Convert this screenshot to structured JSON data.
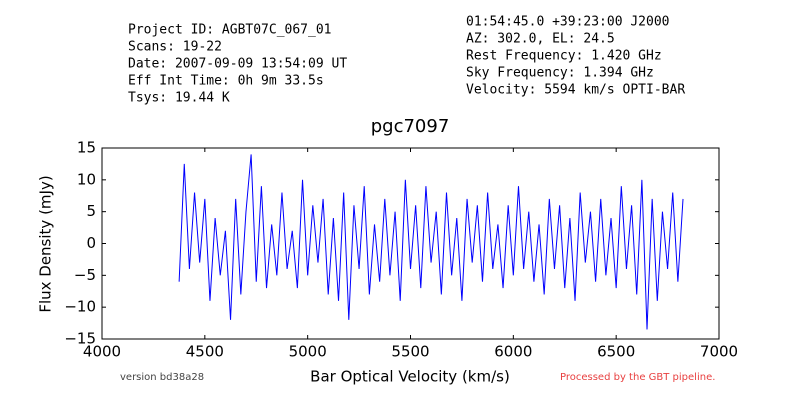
{
  "chart_data": {
    "type": "line",
    "info_left": [
      "Project ID: AGBT07C_067_01",
      "Scans: 19-22",
      "Date: 2007-09-09 13:54:09 UT",
      "Eff Int Time: 0h 9m 33.5s",
      "Tsys: 19.44 K"
    ],
    "info_right": [
      "01:54:45.0 +39:23:00 J2000",
      "AZ: 302.0, EL: 24.5",
      "Rest Frequency:   1.420 GHz",
      "Sky Frequency:    1.394 GHz",
      "Velocity: 5594 km/s OPTI-BAR"
    ],
    "title": "pgc7097",
    "x_label": "Bar Optical Velocity (km/s)",
    "y_label": "Flux Density (mJy)",
    "footer_left": "version bd38a28",
    "footer_right": "Processed by the GBT pipeline.",
    "xlim": [
      4000,
      7000
    ],
    "xticks": [
      4000,
      4500,
      5000,
      5500,
      6000,
      6500,
      7000
    ],
    "ylim": [
      -15,
      15
    ],
    "yticks": [
      {
        "value": -15,
        "label": "−15"
      },
      {
        "value": -10,
        "label": "−10"
      },
      {
        "value": -5,
        "label": "−5"
      },
      0,
      5,
      10,
      15
    ],
    "series": [
      {
        "name": "pgc7097",
        "color": "#0000ff",
        "x": [
          4375,
          4400,
          4425,
          4450,
          4475,
          4500,
          4525,
          4550,
          4575,
          4600,
          4625,
          4650,
          4675,
          4700,
          4725,
          4750,
          4775,
          4800,
          4825,
          4850,
          4875,
          4900,
          4925,
          4950,
          4975,
          5000,
          5025,
          5050,
          5075,
          5100,
          5125,
          5150,
          5175,
          5200,
          5225,
          5250,
          5275,
          5300,
          5325,
          5350,
          5375,
          5400,
          5425,
          5450,
          5475,
          5500,
          5525,
          5550,
          5575,
          5600,
          5625,
          5650,
          5675,
          5700,
          5725,
          5750,
          5775,
          5800,
          5825,
          5850,
          5875,
          5900,
          5925,
          5950,
          5975,
          6000,
          6025,
          6050,
          6075,
          6100,
          6125,
          6150,
          6175,
          6200,
          6225,
          6250,
          6275,
          6300,
          6325,
          6350,
          6375,
          6400,
          6425,
          6450,
          6475,
          6500,
          6525,
          6550,
          6575,
          6600,
          6625,
          6650,
          6675,
          6700,
          6725,
          6750,
          6775,
          6800,
          6825
        ],
        "values": [
          -6,
          12.5,
          -4,
          8,
          -3,
          7,
          -9,
          4,
          -5,
          2,
          -12,
          7,
          -8,
          5,
          14,
          -6,
          9,
          -7,
          3,
          -5,
          8,
          -4,
          2,
          -7,
          10,
          -5,
          6,
          -3,
          7,
          -8,
          4,
          -9,
          8,
          -12,
          6,
          -4,
          9,
          -8,
          3,
          -6,
          7,
          -5,
          5,
          -9,
          10,
          -4,
          6,
          -7,
          9,
          -3,
          5,
          -8,
          8,
          -5,
          4,
          -9,
          7,
          -3,
          6,
          -6,
          8,
          -4,
          3,
          -7,
          6,
          -5,
          9,
          -4,
          5,
          -6,
          3,
          -8,
          7,
          -4,
          6,
          -7,
          4,
          -9,
          8,
          -3,
          5,
          -6,
          7,
          -5,
          4,
          -7,
          9,
          -4,
          6,
          -8,
          10,
          -13.5,
          7,
          -9,
          5,
          -4,
          8,
          -6,
          7
        ]
      }
    ]
  }
}
